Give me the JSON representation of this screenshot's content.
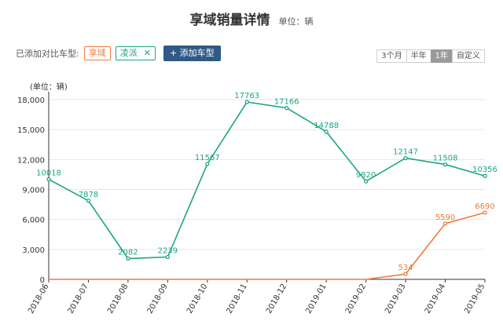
{
  "header": {
    "title": "享域销量详情",
    "unit": "单位：辆"
  },
  "compare": {
    "label": "已添加对比车型:",
    "tags": [
      {
        "label": "享域"
      },
      {
        "label": "凌派",
        "close": "✕"
      }
    ],
    "add_label": "+ 添加车型"
  },
  "range_options": [
    {
      "label": "3个月",
      "active": false
    },
    {
      "label": "半年",
      "active": false
    },
    {
      "label": "1年",
      "active": true
    },
    {
      "label": "自定义",
      "active": false
    }
  ],
  "chart_data": {
    "type": "line",
    "ylabel": "(单位：辆)",
    "ylim": [
      0,
      18000
    ],
    "yticks": [
      0,
      3000,
      6000,
      9000,
      12000,
      15000,
      18000
    ],
    "ytick_labels": [
      "0",
      "3,000",
      "6,000",
      "9,000",
      "12,000",
      "15,000",
      "18,000"
    ],
    "categories": [
      "2018-06",
      "2018-07",
      "2018-08",
      "2018-09",
      "2018-10",
      "2018-11",
      "2018-12",
      "2019-01",
      "2019-02",
      "2019-03",
      "2019-04",
      "2019-05"
    ],
    "grid": true,
    "series": [
      {
        "name": "凌派",
        "color": "#1aa584",
        "values": [
          10018,
          7878,
          2082,
          2239,
          11567,
          17763,
          17166,
          14788,
          9820,
          12147,
          11508,
          10356
        ],
        "labels": [
          "10018",
          "7878",
          "2082",
          "2239",
          "11567",
          "17763",
          "17166",
          "14788",
          "9820",
          "12147",
          "11508",
          "10356"
        ]
      },
      {
        "name": "享域",
        "color": "#f07c3a",
        "values": [
          0,
          0,
          0,
          0,
          0,
          0,
          0,
          0,
          0,
          534,
          5590,
          6690
        ],
        "labels": [
          "",
          "",
          "",
          "",
          "",
          "",
          "",
          "",
          "",
          "534",
          "5590",
          "6690"
        ]
      }
    ]
  }
}
